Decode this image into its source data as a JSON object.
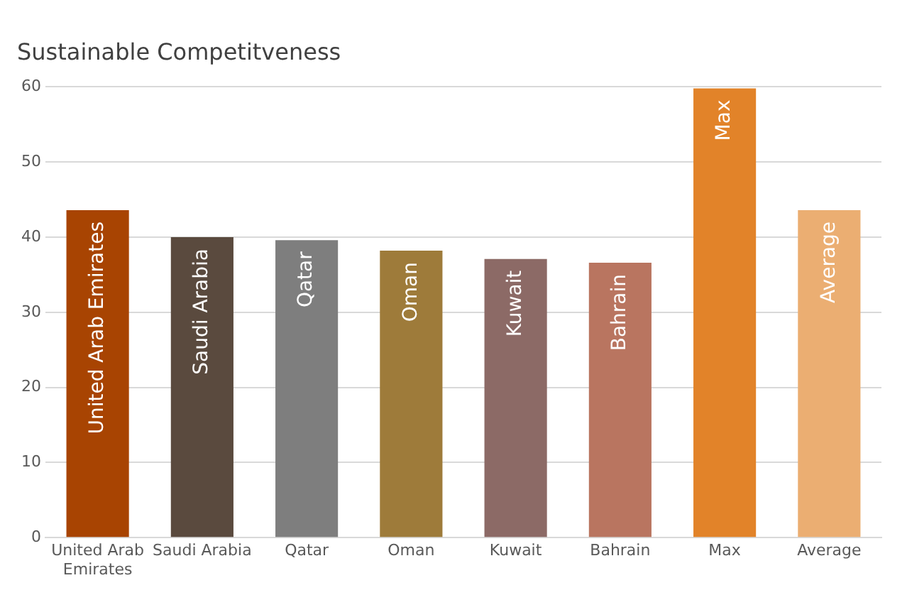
{
  "chart_data": {
    "type": "bar",
    "title": "Sustainable Competitveness",
    "categories": [
      "United Arab Emirates",
      "Saudi Arabia",
      "Qatar",
      "Oman",
      "Kuwait",
      "Bahrain",
      "Max",
      "Average"
    ],
    "values": [
      43.6,
      40.0,
      39.6,
      38.2,
      37.1,
      36.6,
      59.8,
      43.6
    ],
    "colors": [
      "#a84402",
      "#5a4a3e",
      "#7e7e7e",
      "#9e7b3a",
      "#8c6a66",
      "#b97560",
      "#e28329",
      "#ebae72"
    ],
    "value_labels": [
      "United Arab Emirates",
      "Saudi Arabia",
      "Qatar",
      "Oman",
      "Kuwait",
      "Bahrain",
      "Max",
      "Average"
    ],
    "ylim": [
      0,
      60
    ],
    "yticks": [
      0,
      10,
      20,
      30,
      40,
      50,
      60
    ],
    "grid": "y",
    "legend": false
  }
}
